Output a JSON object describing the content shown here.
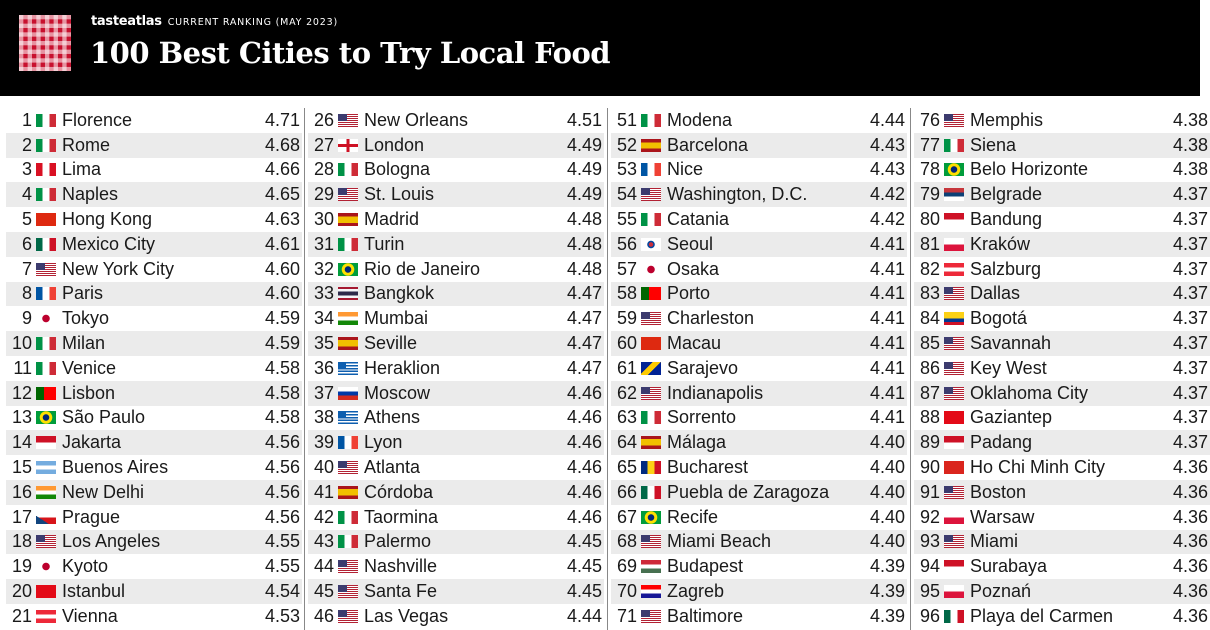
{
  "header": {
    "brand": "tasteatlas",
    "subtitle": "CURRENT RANKING (MAY 2023)",
    "title": "100 Best Cities to Try Local Food"
  },
  "columns": [
    [
      {
        "rank": "1",
        "city": "Florence",
        "score": "4.71",
        "flag": "italy"
      },
      {
        "rank": "2",
        "city": "Rome",
        "score": "4.68",
        "flag": "italy"
      },
      {
        "rank": "3",
        "city": "Lima",
        "score": "4.66",
        "flag": "peru"
      },
      {
        "rank": "4",
        "city": "Naples",
        "score": "4.65",
        "flag": "italy"
      },
      {
        "rank": "5",
        "city": "Hong Kong",
        "score": "4.63",
        "flag": "china"
      },
      {
        "rank": "6",
        "city": "Mexico City",
        "score": "4.61",
        "flag": "mexico"
      },
      {
        "rank": "7",
        "city": "New York City",
        "score": "4.60",
        "flag": "usa"
      },
      {
        "rank": "8",
        "city": "Paris",
        "score": "4.60",
        "flag": "france"
      },
      {
        "rank": "9",
        "city": "Tokyo",
        "score": "4.59",
        "flag": "japan"
      },
      {
        "rank": "10",
        "city": "Milan",
        "score": "4.59",
        "flag": "italy"
      },
      {
        "rank": "11",
        "city": "Venice",
        "score": "4.58",
        "flag": "italy"
      },
      {
        "rank": "12",
        "city": "Lisbon",
        "score": "4.58",
        "flag": "portugal"
      },
      {
        "rank": "13",
        "city": "São Paulo",
        "score": "4.58",
        "flag": "brazil"
      },
      {
        "rank": "14",
        "city": "Jakarta",
        "score": "4.56",
        "flag": "indonesia"
      },
      {
        "rank": "15",
        "city": "Buenos Aires",
        "score": "4.56",
        "flag": "argentina"
      },
      {
        "rank": "16",
        "city": "New Delhi",
        "score": "4.56",
        "flag": "india"
      },
      {
        "rank": "17",
        "city": "Prague",
        "score": "4.56",
        "flag": "czech"
      },
      {
        "rank": "18",
        "city": "Los Angeles",
        "score": "4.55",
        "flag": "usa"
      },
      {
        "rank": "19",
        "city": "Kyoto",
        "score": "4.55",
        "flag": "japan"
      },
      {
        "rank": "20",
        "city": "Istanbul",
        "score": "4.54",
        "flag": "turkey"
      },
      {
        "rank": "21",
        "city": "Vienna",
        "score": "4.53",
        "flag": "austria"
      }
    ],
    [
      {
        "rank": "26",
        "city": "New Orleans",
        "score": "4.51",
        "flag": "usa"
      },
      {
        "rank": "27",
        "city": "London",
        "score": "4.49",
        "flag": "england"
      },
      {
        "rank": "28",
        "city": "Bologna",
        "score": "4.49",
        "flag": "italy"
      },
      {
        "rank": "29",
        "city": "St. Louis",
        "score": "4.49",
        "flag": "usa"
      },
      {
        "rank": "30",
        "city": "Madrid",
        "score": "4.48",
        "flag": "spain"
      },
      {
        "rank": "31",
        "city": "Turin",
        "score": "4.48",
        "flag": "italy"
      },
      {
        "rank": "32",
        "city": "Rio de Janeiro",
        "score": "4.48",
        "flag": "brazil"
      },
      {
        "rank": "33",
        "city": "Bangkok",
        "score": "4.47",
        "flag": "thailand"
      },
      {
        "rank": "34",
        "city": "Mumbai",
        "score": "4.47",
        "flag": "india"
      },
      {
        "rank": "35",
        "city": "Seville",
        "score": "4.47",
        "flag": "spain"
      },
      {
        "rank": "36",
        "city": "Heraklion",
        "score": "4.47",
        "flag": "greece"
      },
      {
        "rank": "37",
        "city": "Moscow",
        "score": "4.46",
        "flag": "russia"
      },
      {
        "rank": "38",
        "city": "Athens",
        "score": "4.46",
        "flag": "greece"
      },
      {
        "rank": "39",
        "city": "Lyon",
        "score": "4.46",
        "flag": "france"
      },
      {
        "rank": "40",
        "city": "Atlanta",
        "score": "4.46",
        "flag": "usa"
      },
      {
        "rank": "41",
        "city": "Córdoba",
        "score": "4.46",
        "flag": "spain"
      },
      {
        "rank": "42",
        "city": "Taormina",
        "score": "4.46",
        "flag": "italy"
      },
      {
        "rank": "43",
        "city": "Palermo",
        "score": "4.45",
        "flag": "italy"
      },
      {
        "rank": "44",
        "city": "Nashville",
        "score": "4.45",
        "flag": "usa"
      },
      {
        "rank": "45",
        "city": "Santa Fe",
        "score": "4.45",
        "flag": "usa"
      },
      {
        "rank": "46",
        "city": "Las Vegas",
        "score": "4.44",
        "flag": "usa"
      }
    ],
    [
      {
        "rank": "51",
        "city": "Modena",
        "score": "4.44",
        "flag": "italy"
      },
      {
        "rank": "52",
        "city": "Barcelona",
        "score": "4.43",
        "flag": "spain"
      },
      {
        "rank": "53",
        "city": "Nice",
        "score": "4.43",
        "flag": "france"
      },
      {
        "rank": "54",
        "city": "Washington, D.C.",
        "score": "4.42",
        "flag": "usa"
      },
      {
        "rank": "55",
        "city": "Catania",
        "score": "4.42",
        "flag": "italy"
      },
      {
        "rank": "56",
        "city": "Seoul",
        "score": "4.41",
        "flag": "korea"
      },
      {
        "rank": "57",
        "city": "Osaka",
        "score": "4.41",
        "flag": "japan"
      },
      {
        "rank": "58",
        "city": "Porto",
        "score": "4.41",
        "flag": "portugal"
      },
      {
        "rank": "59",
        "city": "Charleston",
        "score": "4.41",
        "flag": "usa"
      },
      {
        "rank": "60",
        "city": "Macau",
        "score": "4.41",
        "flag": "china"
      },
      {
        "rank": "61",
        "city": "Sarajevo",
        "score": "4.41",
        "flag": "bosnia"
      },
      {
        "rank": "62",
        "city": "Indianapolis",
        "score": "4.41",
        "flag": "usa"
      },
      {
        "rank": "63",
        "city": "Sorrento",
        "score": "4.41",
        "flag": "italy"
      },
      {
        "rank": "64",
        "city": "Málaga",
        "score": "4.40",
        "flag": "spain"
      },
      {
        "rank": "65",
        "city": "Bucharest",
        "score": "4.40",
        "flag": "romania"
      },
      {
        "rank": "66",
        "city": "Puebla de Zaragoza",
        "score": "4.40",
        "flag": "mexico"
      },
      {
        "rank": "67",
        "city": "Recife",
        "score": "4.40",
        "flag": "brazil"
      },
      {
        "rank": "68",
        "city": "Miami Beach",
        "score": "4.40",
        "flag": "usa"
      },
      {
        "rank": "69",
        "city": "Budapest",
        "score": "4.39",
        "flag": "hungary"
      },
      {
        "rank": "70",
        "city": "Zagreb",
        "score": "4.39",
        "flag": "croatia"
      },
      {
        "rank": "71",
        "city": "Baltimore",
        "score": "4.39",
        "flag": "usa"
      }
    ],
    [
      {
        "rank": "76",
        "city": "Memphis",
        "score": "4.38",
        "flag": "usa"
      },
      {
        "rank": "77",
        "city": "Siena",
        "score": "4.38",
        "flag": "italy"
      },
      {
        "rank": "78",
        "city": "Belo Horizonte",
        "score": "4.38",
        "flag": "brazil"
      },
      {
        "rank": "79",
        "city": "Belgrade",
        "score": "4.37",
        "flag": "serbia"
      },
      {
        "rank": "80",
        "city": "Bandung",
        "score": "4.37",
        "flag": "indonesia"
      },
      {
        "rank": "81",
        "city": "Kraków",
        "score": "4.37",
        "flag": "poland"
      },
      {
        "rank": "82",
        "city": "Salzburg",
        "score": "4.37",
        "flag": "austria"
      },
      {
        "rank": "83",
        "city": "Dallas",
        "score": "4.37",
        "flag": "usa"
      },
      {
        "rank": "84",
        "city": "Bogotá",
        "score": "4.37",
        "flag": "colombia"
      },
      {
        "rank": "85",
        "city": "Savannah",
        "score": "4.37",
        "flag": "usa"
      },
      {
        "rank": "86",
        "city": "Key West",
        "score": "4.37",
        "flag": "usa"
      },
      {
        "rank": "87",
        "city": "Oklahoma City",
        "score": "4.37",
        "flag": "usa"
      },
      {
        "rank": "88",
        "city": "Gaziantep",
        "score": "4.37",
        "flag": "turkey"
      },
      {
        "rank": "89",
        "city": "Padang",
        "score": "4.37",
        "flag": "indonesia"
      },
      {
        "rank": "90",
        "city": "Ho Chi Minh City",
        "score": "4.36",
        "flag": "vietnam"
      },
      {
        "rank": "91",
        "city": "Boston",
        "score": "4.36",
        "flag": "usa"
      },
      {
        "rank": "92",
        "city": "Warsaw",
        "score": "4.36",
        "flag": "poland"
      },
      {
        "rank": "93",
        "city": "Miami",
        "score": "4.36",
        "flag": "usa"
      },
      {
        "rank": "94",
        "city": "Surabaya",
        "score": "4.36",
        "flag": "indonesia"
      },
      {
        "rank": "95",
        "city": "Poznań",
        "score": "4.36",
        "flag": "poland"
      },
      {
        "rank": "96",
        "city": "Playa del Carmen",
        "score": "4.36",
        "flag": "mexico"
      }
    ]
  ]
}
